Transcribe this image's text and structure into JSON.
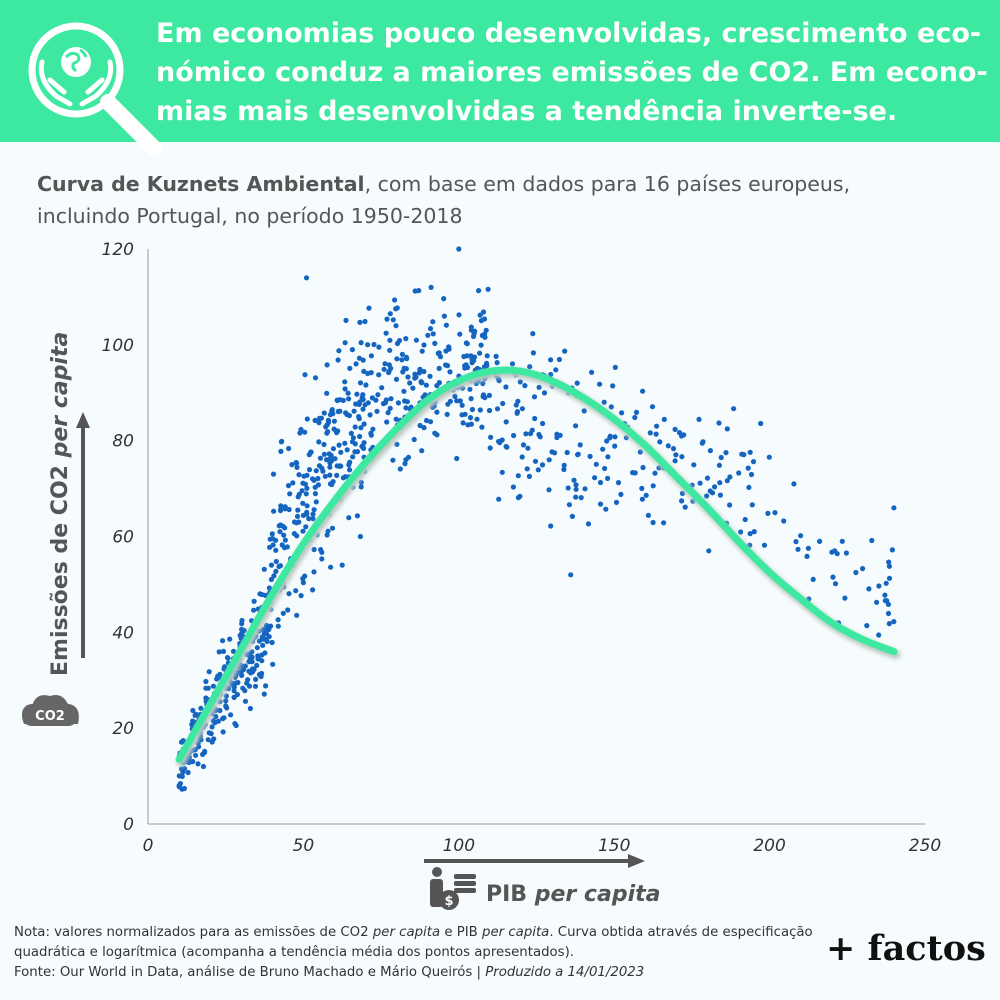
{
  "header": {
    "headline": "Em economias pouco desenvolvidas, crescimento eco-nómico conduz a maiores emissões de CO2. Em econo-mias mais desenvolvidas a tendência inverte-se.",
    "icon": "globe-in-hands-magnifier-icon"
  },
  "subtitle": {
    "bold": "Curva de Kuznets Ambiental",
    "rest": ", com base em dados para 16 países europeus, incluindo Portugal, no período 1950-2018"
  },
  "colors": {
    "accent": "#3de8a0",
    "points": "#1565c0",
    "curve": "#3de8a0",
    "arrow": "#555555",
    "cloud": "#666666"
  },
  "chart_data": {
    "type": "scatter",
    "title": "Curva de Kuznets Ambiental",
    "xlabel": "PIB per capita",
    "ylabel": "Emissões de CO2 per capita",
    "xlim": [
      0,
      250
    ],
    "ylim": [
      0,
      120
    ],
    "x_ticks": [
      "0",
      "50",
      "100",
      "150",
      "200",
      "250"
    ],
    "y_ticks": [
      "0",
      "20",
      "40",
      "60",
      "80",
      "100",
      "120"
    ],
    "grid": false,
    "curve": {
      "description_note": "Curva obtida através de especificação quadrática e logarítmica",
      "x": [
        10,
        20,
        30,
        40,
        50,
        60,
        70,
        80,
        90,
        100,
        110,
        120,
        130,
        140,
        150,
        160,
        170,
        180,
        190,
        200,
        210,
        220,
        230,
        240
      ],
      "y": [
        13.5,
        25,
        36.5,
        48,
        58.5,
        67.5,
        75.5,
        82.5,
        88.5,
        92.5,
        94.5,
        94.5,
        92.5,
        89,
        84.5,
        79,
        72.5,
        66,
        59,
        52.5,
        47,
        42,
        38.5,
        36
      ]
    },
    "point_clusters": [
      {
        "x_range": [
          10,
          40
        ],
        "y_center_at_start": 12,
        "y_center_at_end": 45,
        "spread": 11,
        "count": 260
      },
      {
        "x_range": [
          40,
          70
        ],
        "y_center_at_start": 55,
        "y_center_at_end": 88,
        "spread": 17,
        "count": 250
      },
      {
        "x_range": [
          70,
          110
        ],
        "y_center_at_start": 88,
        "y_center_at_end": 97,
        "spread": 13,
        "count": 230
      },
      {
        "x_range": [
          110,
          150
        ],
        "y_center_at_start": 86,
        "y_center_at_end": 78,
        "spread": 14,
        "count": 110
      },
      {
        "x_range": [
          150,
          200
        ],
        "y_center_at_start": 80,
        "y_center_at_end": 70,
        "spread": 14,
        "count": 90
      },
      {
        "x_range": [
          200,
          240
        ],
        "y_center_at_start": 62,
        "y_center_at_end": 48,
        "spread": 10,
        "count": 40
      }
    ],
    "highlight_points": [
      {
        "x": 100,
        "y": 120
      },
      {
        "x": 51,
        "y": 114
      },
      {
        "x": 240,
        "y": 66
      },
      {
        "x": 10,
        "y": 8
      },
      {
        "x": 136,
        "y": 52
      }
    ]
  },
  "axis": {
    "y_label_plain": "Emissões de CO2 ",
    "y_label_italic": "per capita",
    "x_label_plain": "PIB ",
    "x_label_italic": "per capita",
    "cloud_text": "CO2"
  },
  "note": {
    "l1a": "Nota: valores normalizados para as emissões de CO2 ",
    "l1b": "per capita",
    "l1c": " e PIB ",
    "l1d": "per capita",
    "l1e": ". Curva obtida através de especificação quadrática e logarítmica (acompanha a tendência média dos pontos apresentados).",
    "source": "Fonte: Our World in Data, análise de Bruno Machado e Mário Queirós | ",
    "produced": "Produzido a 14/01/2023"
  },
  "brand": "+ factos"
}
